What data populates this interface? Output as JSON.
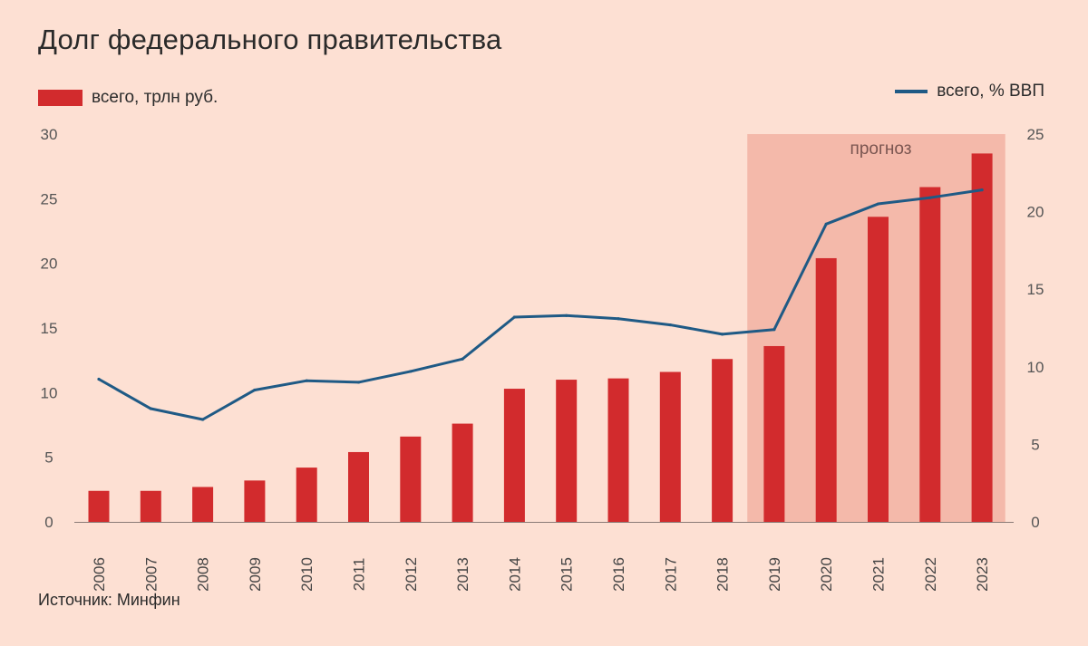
{
  "title": "Долг федерального правительства",
  "legend": {
    "bars_label": "всего, трлн руб.",
    "line_label": "всего, % ВВП"
  },
  "source": "Источник: Минфин",
  "colors": {
    "background": "#fde0d3",
    "bar": "#d22b2d",
    "line": "#1f5a85",
    "forecast_band": "#f4b9aa"
  },
  "chart_data": {
    "type": "bar",
    "categories": [
      "2006",
      "2007",
      "2008",
      "2009",
      "2010",
      "2011",
      "2012",
      "2013",
      "2014",
      "2015",
      "2016",
      "2017",
      "2018",
      "2019",
      "2020",
      "2021",
      "2022",
      "2023"
    ],
    "series": [
      {
        "name": "всего, трлн руб.",
        "type": "bar",
        "axis": "left",
        "values": [
          2.4,
          2.4,
          2.7,
          3.2,
          4.2,
          5.4,
          6.6,
          7.6,
          10.3,
          11.0,
          11.1,
          11.6,
          12.6,
          13.6,
          20.4,
          23.6,
          25.9,
          28.5
        ]
      },
      {
        "name": "всего, % ВВП",
        "type": "line",
        "axis": "right",
        "values": [
          9.2,
          7.3,
          6.6,
          8.5,
          9.1,
          9.0,
          9.7,
          10.5,
          13.2,
          13.3,
          13.1,
          12.7,
          12.1,
          12.4,
          19.2,
          20.5,
          20.9,
          21.4
        ]
      }
    ],
    "forecast": {
      "label": "прогноз",
      "from": "2019",
      "to": "2023"
    },
    "yleft": {
      "lim": [
        0,
        30
      ],
      "ticks": [
        0,
        5,
        10,
        15,
        20,
        25,
        30
      ]
    },
    "yright": {
      "lim": [
        0,
        25
      ],
      "ticks": [
        0,
        5,
        10,
        15,
        20,
        25
      ]
    },
    "grid": false,
    "legend_position": "top"
  }
}
